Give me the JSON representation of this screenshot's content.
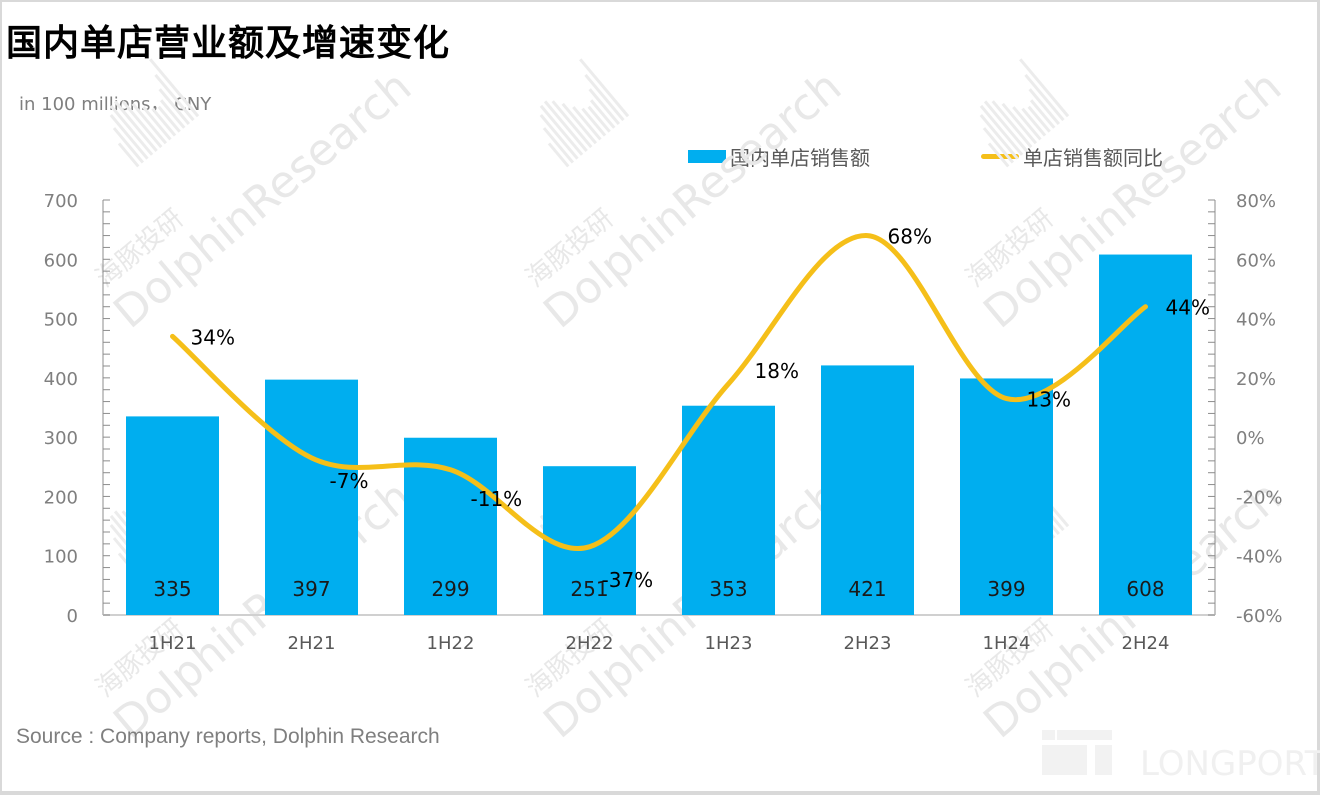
{
  "chart_data": {
    "type": "bar+line",
    "title": "国内单店营业额及增速变化",
    "subtitle": "in 100 millions， CNY",
    "categories": [
      "1H21",
      "2H21",
      "1H22",
      "2H22",
      "1H23",
      "2H23",
      "1H24",
      "2H24"
    ],
    "series": [
      {
        "name": "国内单店销售额",
        "type": "bar",
        "axis": "left",
        "color": "#00aeef",
        "values": [
          335,
          397,
          299,
          251,
          353,
          421,
          399,
          608
        ],
        "labels": [
          "335",
          "397",
          "299",
          "251",
          "353",
          "421",
          "399",
          "608"
        ]
      },
      {
        "name": "单店销售额同比",
        "type": "line",
        "smooth": true,
        "axis": "right",
        "color": "#f5bf19",
        "values": [
          34,
          -7,
          -11,
          -37,
          18,
          68,
          13,
          44
        ],
        "labels": [
          "34%",
          "-7%",
          "-11%",
          "-37%",
          "18%",
          "68%",
          "13%",
          "44%"
        ]
      }
    ],
    "y_left": {
      "min": 0,
      "max": 700,
      "step": 100,
      "ticks": [
        "0",
        "100",
        "200",
        "300",
        "400",
        "500",
        "600",
        "700"
      ]
    },
    "y_right": {
      "min": -60,
      "max": 80,
      "step": 20,
      "ticks": [
        "-60%",
        "-40%",
        "-20%",
        "0%",
        "20%",
        "40%",
        "60%",
        "80%"
      ]
    },
    "legend": {
      "position": "top-right",
      "entries": [
        "国内单店销售额",
        "单店销售额同比"
      ]
    },
    "grid": false,
    "source": "Source : Company reports, Dolphin Research"
  },
  "watermark": {
    "text_en": "DolphinResearch",
    "text_cn": "海豚投研",
    "logo": "LONGPORT"
  }
}
